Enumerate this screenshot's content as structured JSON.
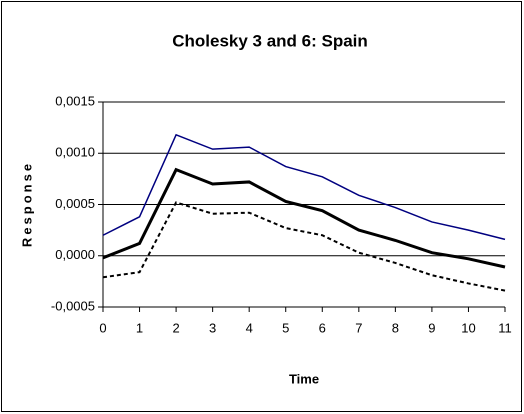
{
  "chart_data": {
    "type": "line",
    "title": "Cholesky 3 and 6: Spain",
    "ylabel": "Response",
    "xlabel": "Time",
    "x": [
      0,
      1,
      2,
      3,
      4,
      5,
      6,
      7,
      8,
      9,
      10,
      11
    ],
    "xlim": [
      0,
      11
    ],
    "xticks": [
      0,
      1,
      2,
      3,
      4,
      5,
      6,
      7,
      8,
      9,
      10,
      11
    ],
    "ylim": [
      -0.0005,
      0.0015
    ],
    "yticks": [
      {
        "value": -0.0005,
        "label": "-0,0005"
      },
      {
        "value": 0,
        "label": "0,0000"
      },
      {
        "value": 0.0005,
        "label": "0,0005"
      },
      {
        "value": 0.001,
        "label": "0,0010"
      },
      {
        "value": 0.0015,
        "label": "0,0015"
      }
    ],
    "grid": true,
    "series": [
      {
        "color": "#000080",
        "width": 1.5,
        "dash": false,
        "values": [
          0.0002,
          0.00038,
          0.00118,
          0.00104,
          0.00106,
          0.00087,
          0.00077,
          0.00059,
          0.00047,
          0.00033,
          0.00025,
          0.00016
        ]
      },
      {
        "color": "#000000",
        "width": 3,
        "dash": false,
        "values": [
          -2e-05,
          0.00012,
          0.00084,
          0.0007,
          0.00072,
          0.00053,
          0.00044,
          0.00025,
          0.00015,
          3e-05,
          -3e-05,
          -0.00011
        ]
      },
      {
        "color": "#000000",
        "width": 2,
        "dash": true,
        "values": [
          -0.00021,
          -0.00016,
          0.00052,
          0.00041,
          0.00042,
          0.00027,
          0.0002,
          3e-05,
          -7e-05,
          -0.00019,
          -0.00027,
          -0.00034
        ]
      }
    ]
  }
}
